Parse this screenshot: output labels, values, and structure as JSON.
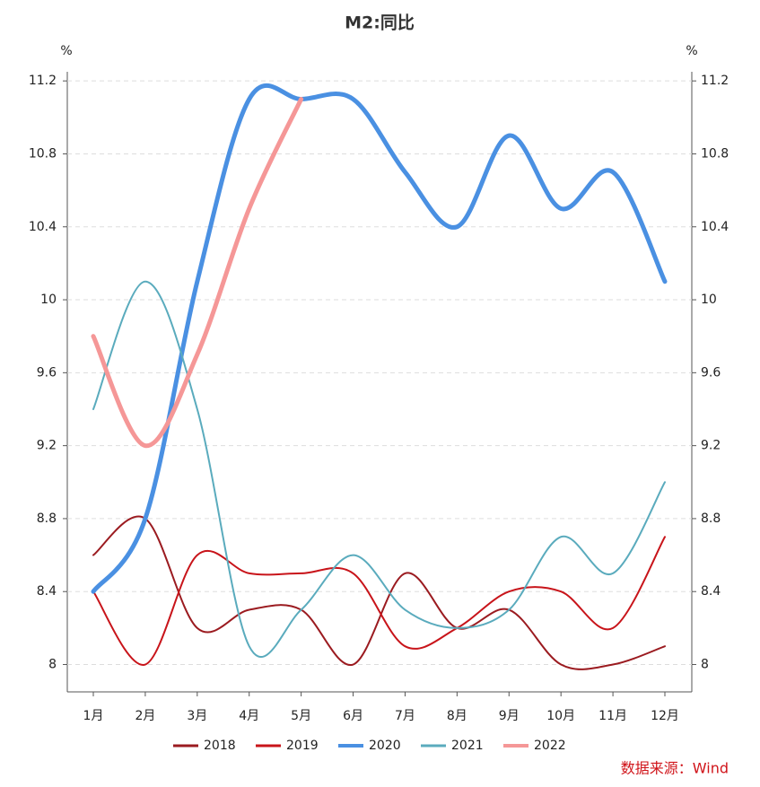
{
  "chart_data": {
    "type": "line",
    "title": "M2:同比",
    "y_unit": "%",
    "y2_unit": "%",
    "source": "数据来源：Wind",
    "categories": [
      "1月",
      "2月",
      "3月",
      "4月",
      "5月",
      "6月",
      "7月",
      "8月",
      "9月",
      "10月",
      "11月",
      "12月"
    ],
    "series": [
      {
        "name": "2018",
        "color": "#9b1b20",
        "width": 2,
        "values": [
          8.6,
          8.8,
          8.2,
          8.3,
          8.3,
          8.0,
          8.5,
          8.2,
          8.3,
          8.0,
          8.0,
          8.1
        ]
      },
      {
        "name": "2019",
        "color": "#c8141a",
        "width": 2,
        "values": [
          8.4,
          8.0,
          8.6,
          8.5,
          8.5,
          8.5,
          8.1,
          8.2,
          8.4,
          8.4,
          8.2,
          8.7
        ]
      },
      {
        "name": "2020",
        "color": "#4a90e2",
        "width": 5,
        "values": [
          8.4,
          8.8,
          10.1,
          11.1,
          11.1,
          11.1,
          10.7,
          10.4,
          10.9,
          10.5,
          10.7,
          10.1
        ]
      },
      {
        "name": "2021",
        "color": "#5aabbd",
        "width": 2,
        "values": [
          9.4,
          10.1,
          9.4,
          8.1,
          8.3,
          8.6,
          8.3,
          8.2,
          8.3,
          8.7,
          8.5,
          9.0
        ]
      },
      {
        "name": "2022",
        "color": "#f59797",
        "width": 5,
        "values": [
          9.8,
          9.2,
          9.7,
          10.5,
          11.1,
          null,
          null,
          null,
          null,
          null,
          null,
          null
        ]
      }
    ],
    "ylim": [
      7.85,
      11.25
    ],
    "yticks": [
      8,
      8.4,
      8.8,
      9.2,
      9.6,
      10,
      10.4,
      10.8,
      11.2
    ],
    "y2lim": [
      7.85,
      11.25
    ],
    "y2ticks": [
      8,
      8.4,
      8.8,
      9.2,
      9.6,
      10,
      10.4,
      10.8,
      11.2
    ],
    "grid": true,
    "legend": "bottom"
  }
}
